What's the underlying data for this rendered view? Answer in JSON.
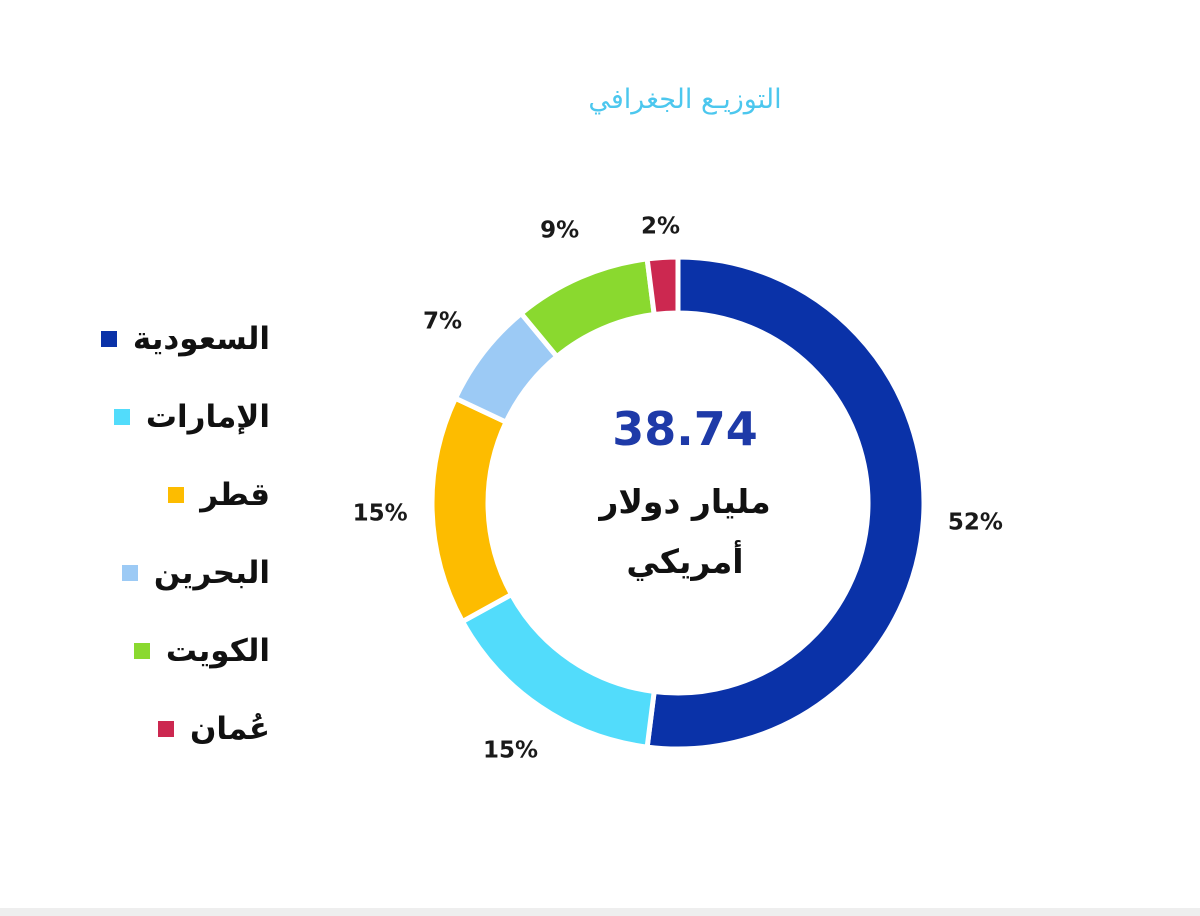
{
  "chart_data": {
    "type": "pie",
    "donut": true,
    "title": "التوزيـع الجغرافي",
    "center_value": "38.74",
    "center_label": "مليار دولار أمريكي",
    "categories": [
      "السعودية",
      "الإمارات",
      "قطر",
      "البحرين",
      "الكويت",
      "عُمان"
    ],
    "values": [
      52,
      15,
      15,
      7,
      9,
      2
    ],
    "value_labels": [
      "52%",
      "15%",
      "15%",
      "7%",
      "9%",
      "2%"
    ],
    "colors": [
      "#0a32a8",
      "#52dcfb",
      "#fdbc00",
      "#9ccaf5",
      "#8ad92f",
      "#cc2850"
    ],
    "legend_position": "left"
  }
}
